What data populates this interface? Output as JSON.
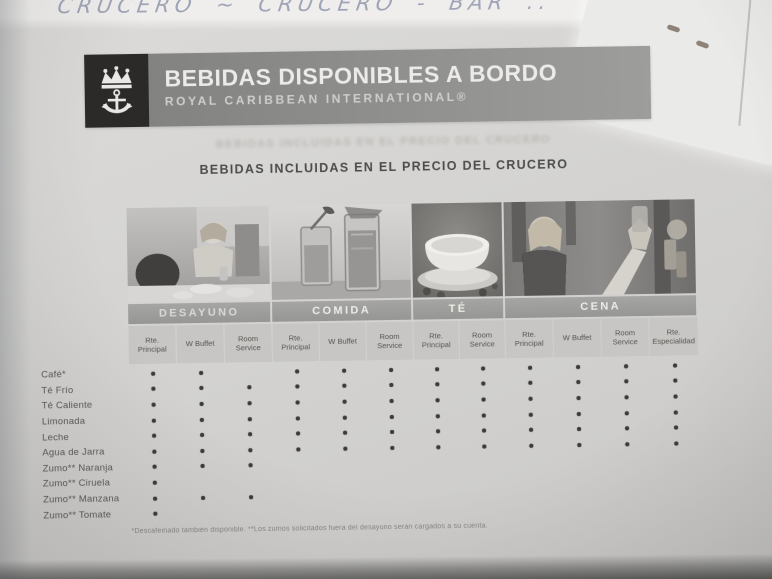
{
  "annotations": {
    "handwriting": "CRUCERO ~ CRUCERO - BAR .."
  },
  "header": {
    "logo_icon": "crown-anchor-icon",
    "title": "BEBIDAS DISPONIBLES A BORDO",
    "subtitle": "ROYAL CARIBBEAN INTERNATIONAL®"
  },
  "section": {
    "showthrough": "BEBIDAS INCLUIDAS EN EL PRECIO DEL CRUCERO",
    "title": "BEBIDAS INCLUIDAS EN EL PRECIO DEL CRUCERO"
  },
  "table": {
    "groups": [
      {
        "label": "DESAYUNO",
        "photo": "breakfast-dining-scene",
        "columns": [
          "Rte. Principal",
          "W Buffet",
          "Room Service"
        ]
      },
      {
        "label": "COMIDA",
        "photo": "iced-beverages",
        "columns": [
          "Rte. Principal",
          "W Buffet",
          "Room Service"
        ]
      },
      {
        "label": "TÉ",
        "photo": "tea-cup-and-saucer",
        "columns": [
          "Rte. Principal",
          "Room Service"
        ]
      },
      {
        "label": "CENA",
        "photo": "dinner-toast-scene",
        "columns": [
          "Rte. Principal",
          "W Buffet",
          "Room Service",
          "Rte. Especialidad"
        ]
      }
    ],
    "rows": [
      {
        "label": "Café*",
        "dots": [
          1,
          1,
          0,
          1,
          1,
          1,
          1,
          1,
          1,
          1,
          1,
          1
        ]
      },
      {
        "label": "Té Frío",
        "dots": [
          1,
          1,
          1,
          1,
          1,
          1,
          1,
          1,
          1,
          1,
          1,
          1
        ]
      },
      {
        "label": "Té Caliente",
        "dots": [
          1,
          1,
          1,
          1,
          1,
          1,
          1,
          1,
          1,
          1,
          1,
          1
        ]
      },
      {
        "label": "Limonada",
        "dots": [
          1,
          1,
          1,
          1,
          1,
          1,
          1,
          1,
          1,
          1,
          1,
          1
        ]
      },
      {
        "label": "Leche",
        "dots": [
          1,
          1,
          1,
          1,
          1,
          1,
          1,
          1,
          1,
          1,
          1,
          1
        ]
      },
      {
        "label": "Agua de Jarra",
        "dots": [
          1,
          1,
          1,
          1,
          1,
          1,
          1,
          1,
          1,
          1,
          1,
          1
        ]
      },
      {
        "label": "Zumo** Naranja",
        "dots": [
          1,
          1,
          1,
          0,
          0,
          0,
          0,
          0,
          0,
          0,
          0,
          0
        ]
      },
      {
        "label": "Zumo** Ciruela",
        "dots": [
          1,
          0,
          0,
          0,
          0,
          0,
          0,
          0,
          0,
          0,
          0,
          0
        ]
      },
      {
        "label": "Zumo** Manzana",
        "dots": [
          1,
          1,
          1,
          0,
          0,
          0,
          0,
          0,
          0,
          0,
          0,
          0
        ]
      },
      {
        "label": "Zumo** Tomate",
        "dots": [
          1,
          0,
          0,
          0,
          0,
          0,
          0,
          0,
          0,
          0,
          0,
          0
        ]
      }
    ],
    "dot_symbol": "•"
  },
  "footnote": "*Descafeinado también disponible.  **Los zumos solicitados fuera del desayuno serán cargados a su cuenta.",
  "colors": {
    "paper": "#d5d4d2",
    "header_band": "#8c8c8a",
    "logo_background": "#2b2a28",
    "group_band": "#9c9c9a",
    "subhead_cell": "#c7c6c4",
    "dot": "#3b3b39"
  }
}
